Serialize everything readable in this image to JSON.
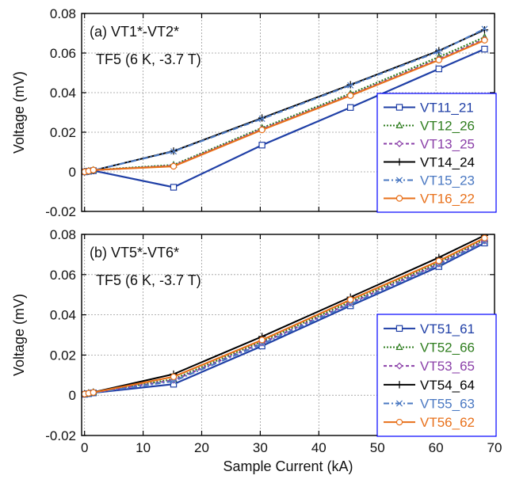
{
  "colors": {
    "frame": "#000000",
    "grid": "#9a9a9a",
    "legend_border": "#0000ff"
  },
  "chart_data": [
    {
      "type": "line",
      "panel_label": "(a) VT1*-VT2*",
      "subtitle": "TF5 (6 K, -3.7 T)",
      "xlabel": "",
      "ylabel": "Voltage (mV)",
      "xlim": [
        -0.5,
        70
      ],
      "ylim": [
        -0.02,
        0.08
      ],
      "xticks": [
        0,
        10,
        20,
        30,
        40,
        50,
        60,
        70
      ],
      "xtick_labels": [
        "",
        "",
        "",
        "",
        "",
        "",
        "",
        ""
      ],
      "yticks": [
        -0.02,
        0,
        0.02,
        0.04,
        0.06,
        0.08
      ],
      "ytick_labels": [
        "-0.02",
        "0",
        "0.02",
        "0.04",
        "0.06",
        "0.08"
      ],
      "grid": true,
      "legend_position": "right",
      "x": [
        0,
        0.7,
        1.5,
        15.2,
        30.3,
        45.4,
        60.5,
        68.3
      ],
      "series": [
        {
          "name": "VT11_21",
          "color": "#1f3fa6",
          "dash": "",
          "marker": "square",
          "values": [
            0.0,
            0.0003,
            0.0006,
            -0.0078,
            0.0135,
            0.0325,
            0.052,
            0.062
          ]
        },
        {
          "name": "VT12_26",
          "color": "#2e7d1e",
          "dash": "2,2",
          "marker": "triangle",
          "values": [
            0.0,
            0.0004,
            0.0009,
            0.0035,
            0.0222,
            0.0395,
            0.058,
            0.068
          ]
        },
        {
          "name": "VT13_25",
          "color": "#8a3fa8",
          "dash": "4,3",
          "marker": "diamond",
          "values": [
            0.0,
            0.0004,
            0.0008,
            0.0031,
            0.0216,
            0.0388,
            0.057,
            0.067
          ]
        },
        {
          "name": "VT14_24",
          "color": "#000000",
          "dash": "",
          "marker": "plus",
          "values": [
            0.0,
            0.0003,
            0.0007,
            0.0105,
            0.0272,
            0.044,
            0.0612,
            0.0717
          ]
        },
        {
          "name": "VT15_23",
          "color": "#4a78c2",
          "dash": "7,3,2,3",
          "marker": "x",
          "values": [
            0.0,
            0.0003,
            0.0007,
            0.0103,
            0.0268,
            0.0437,
            0.0608,
            0.0722
          ]
        },
        {
          "name": "VT16_22",
          "color": "#e8701a",
          "dash": "",
          "marker": "circle",
          "values": [
            0.0,
            0.0004,
            0.0009,
            0.0028,
            0.0212,
            0.0385,
            0.0565,
            0.0665
          ]
        }
      ]
    },
    {
      "type": "line",
      "panel_label": "(b) VT5*-VT6*",
      "subtitle": "TF5 (6 K, -3.7 T)",
      "xlabel": "Sample Current (kA)",
      "ylabel": "Voltage (mV)",
      "xlim": [
        -0.5,
        70
      ],
      "ylim": [
        -0.02,
        0.08
      ],
      "xticks": [
        0,
        10,
        20,
        30,
        40,
        50,
        60,
        70
      ],
      "xtick_labels": [
        "0",
        "10",
        "20",
        "30",
        "40",
        "50",
        "60",
        "70"
      ],
      "yticks": [
        -0.02,
        0,
        0.02,
        0.04,
        0.06,
        0.08
      ],
      "ytick_labels": [
        "-0.02",
        "0",
        "0.02",
        "0.04",
        "0.06",
        "0.08"
      ],
      "grid": true,
      "legend_position": "right",
      "x": [
        0,
        0.7,
        1.5,
        15.2,
        30.3,
        45.4,
        60.5,
        68.3
      ],
      "series": [
        {
          "name": "VT51_61",
          "color": "#1f3fa6",
          "dash": "",
          "marker": "square",
          "values": [
            0.0005,
            0.0008,
            0.0012,
            0.0055,
            0.0245,
            0.0445,
            0.064,
            0.0757
          ]
        },
        {
          "name": "VT52_66",
          "color": "#2e7d1e",
          "dash": "2,2",
          "marker": "triangle",
          "values": [
            0.0005,
            0.0009,
            0.0014,
            0.008,
            0.0268,
            0.0465,
            0.066,
            0.0775
          ]
        },
        {
          "name": "VT53_65",
          "color": "#8a3fa8",
          "dash": "4,3",
          "marker": "diamond",
          "values": [
            0.0005,
            0.0009,
            0.0013,
            0.0075,
            0.026,
            0.0458,
            0.0653,
            0.0768
          ]
        },
        {
          "name": "VT54_64",
          "color": "#000000",
          "dash": "",
          "marker": "plus",
          "values": [
            0.0007,
            0.0011,
            0.0015,
            0.0105,
            0.0292,
            0.0488,
            0.0685,
            0.0795
          ]
        },
        {
          "name": "VT55_63",
          "color": "#4a78c2",
          "dash": "7,3,2,3",
          "marker": "x",
          "values": [
            0.0004,
            0.0008,
            0.0012,
            0.007,
            0.0255,
            0.0452,
            0.0648,
            0.0762
          ]
        },
        {
          "name": "VT56_62",
          "color": "#e8701a",
          "dash": "",
          "marker": "circle",
          "values": [
            0.0006,
            0.001,
            0.0014,
            0.0092,
            0.0275,
            0.0475,
            0.0668,
            0.0782
          ]
        }
      ]
    }
  ]
}
